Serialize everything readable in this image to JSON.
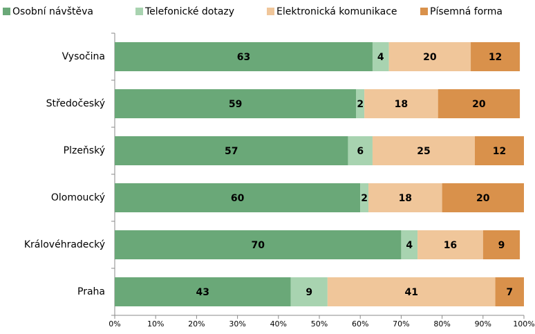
{
  "chart_data": {
    "type": "stacked-barh",
    "categories": [
      "Vysočina",
      "Středočeský",
      "Plzeňský",
      "Olomoucký",
      "Královéhradecký",
      "Praha"
    ],
    "series": [
      {
        "name": "Osobní návštěva",
        "color": "#6aa878",
        "values": [
          63,
          59,
          57,
          60,
          70,
          43
        ]
      },
      {
        "name": "Telefonické dotazy",
        "color": "#a8d3b0",
        "values": [
          4,
          2,
          6,
          2,
          4,
          9
        ]
      },
      {
        "name": "Elektronická komunikace",
        "color": "#f0c69a",
        "values": [
          20,
          18,
          25,
          18,
          16,
          41
        ]
      },
      {
        "name": "Písemná forma",
        "color": "#d9914b",
        "values": [
          12,
          20,
          12,
          20,
          9,
          7
        ]
      }
    ],
    "xlim": [
      0,
      100
    ],
    "xticks": [
      {
        "value": 0,
        "label": "0%"
      },
      {
        "value": 10,
        "label": "10%"
      },
      {
        "value": 20,
        "label": "20%"
      },
      {
        "value": 30,
        "label": "30%"
      },
      {
        "value": 40,
        "label": "40%"
      },
      {
        "value": 50,
        "label": "50%"
      },
      {
        "value": 60,
        "label": "60%"
      },
      {
        "value": 70,
        "label": "70%"
      },
      {
        "value": 80,
        "label": "80%"
      },
      {
        "value": 90,
        "label": "90%"
      },
      {
        "value": 100,
        "label": "100%"
      }
    ],
    "legend": "top"
  }
}
